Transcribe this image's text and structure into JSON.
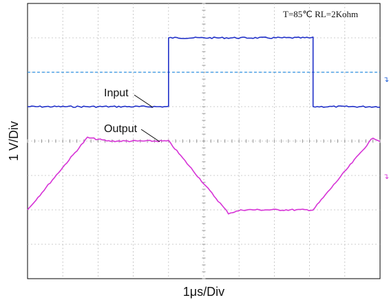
{
  "chart_data": {
    "type": "line",
    "title": "",
    "annotation": "T=85℃ RL=2Kohm",
    "xlabel": "1μs/Div",
    "ylabel": "1 V/Div",
    "grid": true,
    "xlim": [
      0,
      10
    ],
    "ylim": [
      -4,
      4
    ],
    "x_unit": "μs",
    "y_unit": "V",
    "trigger_level": 2,
    "series": [
      {
        "name": "Input",
        "color": "#1f2fc8",
        "points": [
          [
            0,
            1
          ],
          [
            4,
            1
          ],
          [
            4,
            3
          ],
          [
            8.1,
            3
          ],
          [
            8.1,
            1
          ],
          [
            10,
            1
          ]
        ]
      },
      {
        "name": "Output",
        "color": "#d633d6",
        "points": [
          [
            0,
            -2
          ],
          [
            1.7,
            0.1
          ],
          [
            2.3,
            0
          ],
          [
            4,
            0
          ],
          [
            5.7,
            -2.1
          ],
          [
            6.1,
            -2
          ],
          [
            8.1,
            -2
          ],
          [
            9.8,
            0.1
          ],
          [
            10,
            0
          ]
        ]
      }
    ]
  }
}
